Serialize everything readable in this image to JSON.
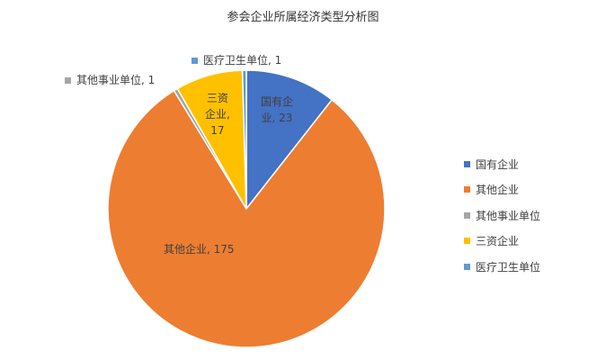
{
  "chart_data": {
    "type": "pie",
    "title": "参会企业所属经济类型分析图",
    "slices": [
      {
        "label": "国有企业",
        "value": 23,
        "color": "#4472C4",
        "data_label": "国有企\n业, 23"
      },
      {
        "label": "其他企业",
        "value": 175,
        "color": "#ED7D31",
        "data_label": "其他企业, 175"
      },
      {
        "label": "其他事业单位",
        "value": 1,
        "color": "#A5A5A5",
        "data_label": "其他事业单位, 1"
      },
      {
        "label": "三资企业",
        "value": 17,
        "color": "#FFC000",
        "data_label": "三资\n企业,\n17"
      },
      {
        "label": "医疗卫生单位",
        "value": 1,
        "color": "#5B9BD5",
        "data_label": "医疗卫生单位, 1"
      }
    ],
    "start_angle": "top",
    "direction": "clockwise",
    "legend_position": "right"
  }
}
